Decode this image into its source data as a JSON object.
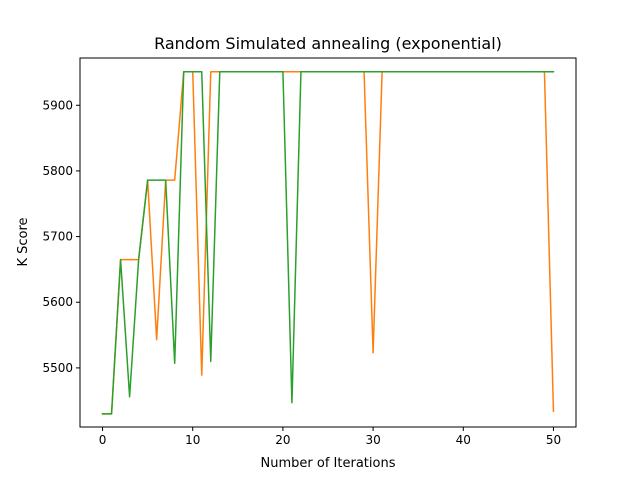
{
  "chart_data": {
    "type": "line",
    "title": "Random Simulated annealing (exponential)",
    "xlabel": "Number of Iterations",
    "ylabel": "K Score",
    "xlim": [
      -2.5,
      52.5
    ],
    "ylim": [
      5410,
      5972
    ],
    "x_ticks": [
      0,
      10,
      20,
      30,
      40,
      50
    ],
    "y_ticks": [
      5500,
      5600,
      5700,
      5800,
      5900
    ],
    "grid": false,
    "legend": "none",
    "series": [
      {
        "color": "#ff7f0e",
        "points": [
          [
            0,
            5430
          ],
          [
            1,
            5430
          ],
          [
            2,
            5665
          ],
          [
            3,
            5665
          ],
          [
            4,
            5665
          ],
          [
            5,
            5786
          ],
          [
            6,
            5543
          ],
          [
            7,
            5786
          ],
          [
            8,
            5786
          ],
          [
            9,
            5951
          ],
          [
            10,
            5951
          ],
          [
            11,
            5489
          ],
          [
            12,
            5951
          ],
          [
            13,
            5951
          ],
          [
            20,
            5951
          ],
          [
            21,
            5951
          ],
          [
            22,
            5951
          ],
          [
            29,
            5951
          ],
          [
            30,
            5523
          ],
          [
            31,
            5951
          ],
          [
            49,
            5951
          ],
          [
            50,
            5434
          ]
        ]
      },
      {
        "color": "#2ca02c",
        "points": [
          [
            0,
            5430
          ],
          [
            1,
            5430
          ],
          [
            2,
            5665
          ],
          [
            3,
            5456
          ],
          [
            4,
            5665
          ],
          [
            5,
            5786
          ],
          [
            6,
            5786
          ],
          [
            7,
            5786
          ],
          [
            8,
            5507
          ],
          [
            9,
            5951
          ],
          [
            10,
            5951
          ],
          [
            11,
            5951
          ],
          [
            12,
            5510
          ],
          [
            13,
            5951
          ],
          [
            20,
            5951
          ],
          [
            21,
            5447
          ],
          [
            22,
            5951
          ],
          [
            49,
            5951
          ],
          [
            50,
            5951
          ]
        ]
      }
    ]
  }
}
